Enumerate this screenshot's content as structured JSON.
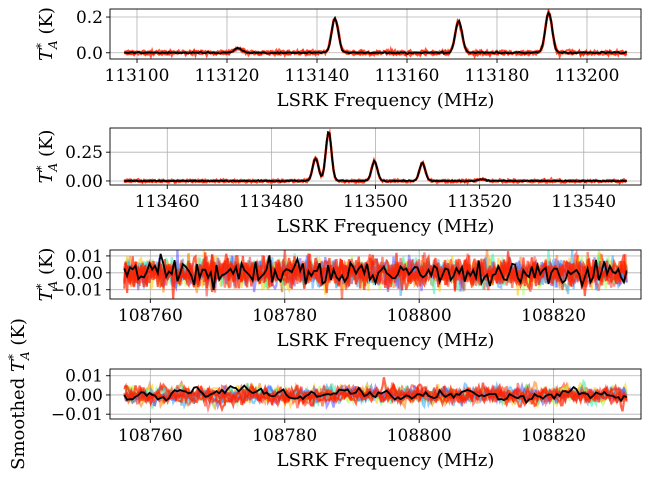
{
  "chart_data": [
    {
      "type": "line",
      "xlabel": "LSRK Frequency (MHz)",
      "ylabel": "T_A^* (K)",
      "xlim": [
        113094,
        113212
      ],
      "ylim": [
        -0.035,
        0.245
      ],
      "xticks": [
        113100,
        113120,
        113140,
        113160,
        113180,
        113200
      ],
      "yticks": [
        0.0,
        0.2
      ],
      "ytick_labels": [
        "0.0",
        "0.2"
      ],
      "grid": true,
      "noise": 0.006,
      "peaks": [
        {
          "center": 113122.5,
          "amp": 0.025,
          "width": 0.9
        },
        {
          "center": 113144.0,
          "amp": 0.19,
          "width": 0.75
        },
        {
          "center": 113171.5,
          "amp": 0.18,
          "width": 0.75
        },
        {
          "center": 113191.5,
          "amp": 0.225,
          "width": 0.75
        }
      ],
      "series": [
        {
          "role": "samples",
          "color": "#ff2200"
        },
        {
          "role": "data",
          "color": "#000000"
        }
      ]
    },
    {
      "type": "line",
      "xlabel": "LSRK Frequency (MHz)",
      "ylabel": "T_A^* (K)",
      "xlim": [
        113449,
        113551
      ],
      "ylim": [
        -0.035,
        0.46
      ],
      "xticks": [
        113460,
        113480,
        113500,
        113520,
        113540
      ],
      "yticks": [
        0.0,
        0.25
      ],
      "ytick_labels": [
        "0.00",
        "0.25"
      ],
      "grid": true,
      "noise": 0.006,
      "peaks": [
        {
          "center": 113488.5,
          "amp": 0.2,
          "width": 0.55
        },
        {
          "center": 113491.0,
          "amp": 0.43,
          "width": 0.55
        },
        {
          "center": 113499.8,
          "amp": 0.17,
          "width": 0.55
        },
        {
          "center": 113509.0,
          "amp": 0.16,
          "width": 0.55
        },
        {
          "center": 113520.5,
          "amp": 0.015,
          "width": 0.7
        }
      ],
      "series": [
        {
          "role": "samples",
          "color": "#ff2200"
        },
        {
          "role": "data",
          "color": "#000000"
        }
      ]
    },
    {
      "type": "line",
      "xlabel": "LSRK Frequency (MHz)",
      "ylabel": "T_A^* (K)",
      "xlim": [
        108754,
        108833
      ],
      "ylim": [
        -0.0155,
        0.0135
      ],
      "xticks": [
        108760,
        108780,
        108800,
        108820
      ],
      "yticks": [
        0.01,
        0.0,
        -0.01
      ],
      "ytick_labels": [
        "0.01",
        "0.00",
        "−0.01"
      ],
      "grid": true,
      "noise": 0.0045,
      "peaks": [],
      "series": [
        {
          "role": "samples",
          "color": "multi"
        },
        {
          "role": "data",
          "color": "#000000"
        }
      ]
    },
    {
      "type": "line",
      "xlabel": "LSRK Frequency (MHz)",
      "ylabel": "Smoothed T_A^* (K)",
      "xlim": [
        108754,
        108833
      ],
      "ylim": [
        -0.0125,
        0.0135
      ],
      "xticks": [
        108760,
        108780,
        108800,
        108820
      ],
      "yticks": [
        0.01,
        0.0,
        -0.01
      ],
      "ytick_labels": [
        "0.01",
        "0.00",
        "−0.01"
      ],
      "grid": true,
      "noise": 0.0025,
      "peaks": [],
      "series": [
        {
          "role": "samples",
          "color": "multi"
        },
        {
          "role": "data",
          "color": "#000000"
        }
      ]
    }
  ]
}
